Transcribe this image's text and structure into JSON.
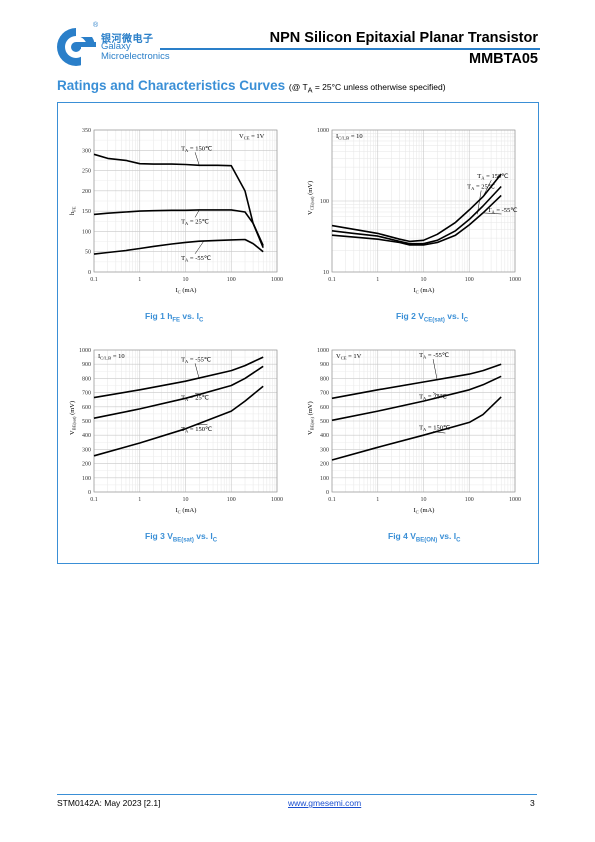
{
  "header": {
    "logo_cn": "银河微电子",
    "logo_line1": "Galaxy",
    "logo_line2": "Microelectronics",
    "logo_registered": "®",
    "title": "NPN Silicon Epitaxial Planar Transistor",
    "part": "MMBTA05",
    "accent": "#2a7fc9"
  },
  "section": {
    "title": "Ratings and Characteristics Curves",
    "cond_open": "(@ T",
    "cond_sub": "A",
    "cond_rest": " = 25°C unless otherwise specified)"
  },
  "captions": {
    "fig1_pre": "Fig 1    h",
    "fig1_sub": "FE",
    "fig1_post": " vs. I",
    "fig1_sub2": "C",
    "fig2_pre": "Fig 2    V",
    "fig2_sub": "CE(sat)",
    "fig2_post": " vs. I",
    "fig2_sub2": "C",
    "fig3_pre": "Fig 3    V",
    "fig3_sub": "BE(sat)",
    "fig3_post": " vs. I",
    "fig3_sub2": "C",
    "fig4_pre": "Fig 4    V",
    "fig4_sub": "BE(ON)",
    "fig4_post": " vs. I",
    "fig4_sub2": "C"
  },
  "footer": {
    "doc": "STM0142A: May 2023 [2.1]",
    "url": "www.gmesemi.com",
    "page": "3"
  },
  "chart_data": [
    {
      "id": "fig1",
      "type": "line",
      "x_scale": "log",
      "y_scale": "linear",
      "xlim": [
        0.1,
        1000
      ],
      "ylim": [
        0,
        350
      ],
      "x_ticks": [
        "0.1",
        "1",
        "10",
        "100",
        "1000"
      ],
      "y_ticks": [
        "0",
        "50",
        "100",
        "150",
        "200",
        "250",
        "300",
        "350"
      ],
      "xlabel": "I_C (mA)",
      "ylabel": "h_FE",
      "annotation": "V_CE = 1V",
      "grid": true,
      "series": [
        {
          "name": "T_A = 150℃",
          "x": [
            0.1,
            0.2,
            0.5,
            1,
            2,
            5,
            10,
            20,
            50,
            100,
            200,
            300,
            500
          ],
          "y": [
            290,
            280,
            275,
            267,
            266,
            266,
            265,
            263,
            263,
            262,
            200,
            120,
            65
          ]
        },
        {
          "name": "T_A = 25℃",
          "x": [
            0.1,
            0.2,
            0.5,
            1,
            2,
            5,
            10,
            20,
            50,
            100,
            200,
            300,
            500
          ],
          "y": [
            142,
            145,
            148,
            150,
            151,
            152,
            152,
            153,
            153,
            153,
            148,
            120,
            60
          ]
        },
        {
          "name": "T_A = -55℃",
          "x": [
            0.1,
            0.2,
            0.5,
            1,
            2,
            5,
            10,
            20,
            50,
            100,
            200,
            300,
            500
          ],
          "y": [
            44,
            48,
            53,
            58,
            63,
            69,
            73,
            76,
            78,
            79,
            80,
            70,
            50
          ]
        }
      ]
    },
    {
      "id": "fig2",
      "type": "line",
      "x_scale": "log",
      "y_scale": "log",
      "xlim": [
        0.1,
        1000
      ],
      "ylim": [
        10,
        1000
      ],
      "x_ticks": [
        "0.1",
        "1",
        "10",
        "100",
        "1000"
      ],
      "y_ticks": [
        "10",
        "100",
        "1000"
      ],
      "xlabel": "I_C (mA)",
      "ylabel": "V_CE(sat) (mV)",
      "annotation": "I_C/I_B = 10",
      "grid": true,
      "series": [
        {
          "name": "T_A = 150℃",
          "x": [
            0.1,
            0.3,
            1,
            3,
            5,
            10,
            20,
            50,
            100,
            200,
            500
          ],
          "y": [
            45,
            40,
            35,
            29,
            27,
            28,
            34,
            50,
            75,
            115,
            240
          ]
        },
        {
          "name": "T_A = 25℃",
          "x": [
            0.1,
            0.3,
            1,
            3,
            5,
            10,
            20,
            50,
            100,
            200,
            500
          ],
          "y": [
            38,
            35,
            32,
            27,
            25,
            25,
            28,
            38,
            55,
            85,
            160
          ]
        },
        {
          "name": "T_A = -55℃",
          "x": [
            0.1,
            0.3,
            1,
            3,
            5,
            10,
            20,
            50,
            100,
            200,
            500
          ],
          "y": [
            33,
            31,
            29,
            26,
            24,
            24,
            26,
            33,
            46,
            68,
            120
          ]
        }
      ]
    },
    {
      "id": "fig3",
      "type": "line",
      "x_scale": "log",
      "y_scale": "linear",
      "xlim": [
        0.1,
        1000
      ],
      "ylim": [
        0,
        1000
      ],
      "x_ticks": [
        "0.1",
        "1",
        "10",
        "100",
        "1000"
      ],
      "y_ticks": [
        "0",
        "100",
        "200",
        "300",
        "400",
        "500",
        "600",
        "700",
        "800",
        "900",
        "1000"
      ],
      "xlabel": "I_C (mA)",
      "ylabel": "V_BE(sat) (mV)",
      "annotation": "I_C/I_B = 10",
      "grid": true,
      "series": [
        {
          "name": "T_A = -55℃",
          "x": [
            0.1,
            1,
            10,
            100,
            200,
            500
          ],
          "y": [
            665,
            720,
            780,
            855,
            890,
            950
          ]
        },
        {
          "name": "T_A = 25℃",
          "x": [
            0.1,
            1,
            10,
            100,
            200,
            500
          ],
          "y": [
            520,
            585,
            660,
            750,
            800,
            885
          ]
        },
        {
          "name": "T_A = 150℃",
          "x": [
            0.1,
            1,
            10,
            100,
            200,
            500
          ],
          "y": [
            255,
            345,
            445,
            570,
            640,
            745
          ]
        }
      ]
    },
    {
      "id": "fig4",
      "type": "line",
      "x_scale": "log",
      "y_scale": "linear",
      "xlim": [
        0.1,
        1000
      ],
      "ylim": [
        0,
        1000
      ],
      "x_ticks": [
        "0.1",
        "1",
        "10",
        "100",
        "1000"
      ],
      "y_ticks": [
        "0",
        "100",
        "200",
        "300",
        "400",
        "500",
        "600",
        "700",
        "800",
        "900",
        "1000"
      ],
      "xlabel": "I_C (mA)",
      "ylabel": "V_BE(on) (mV)",
      "annotation": "V_CE = 1V",
      "grid": true,
      "series": [
        {
          "name": "T_A = -55℃",
          "x": [
            0.1,
            1,
            10,
            100,
            200,
            500
          ],
          "y": [
            660,
            720,
            775,
            830,
            855,
            900
          ]
        },
        {
          "name": "T_A = 25℃",
          "x": [
            0.1,
            1,
            10,
            100,
            200,
            500
          ],
          "y": [
            505,
            570,
            640,
            720,
            755,
            815
          ]
        },
        {
          "name": "T_A = 150℃",
          "x": [
            0.1,
            1,
            10,
            100,
            200,
            500
          ],
          "y": [
            225,
            315,
            400,
            490,
            545,
            670
          ]
        }
      ]
    }
  ]
}
